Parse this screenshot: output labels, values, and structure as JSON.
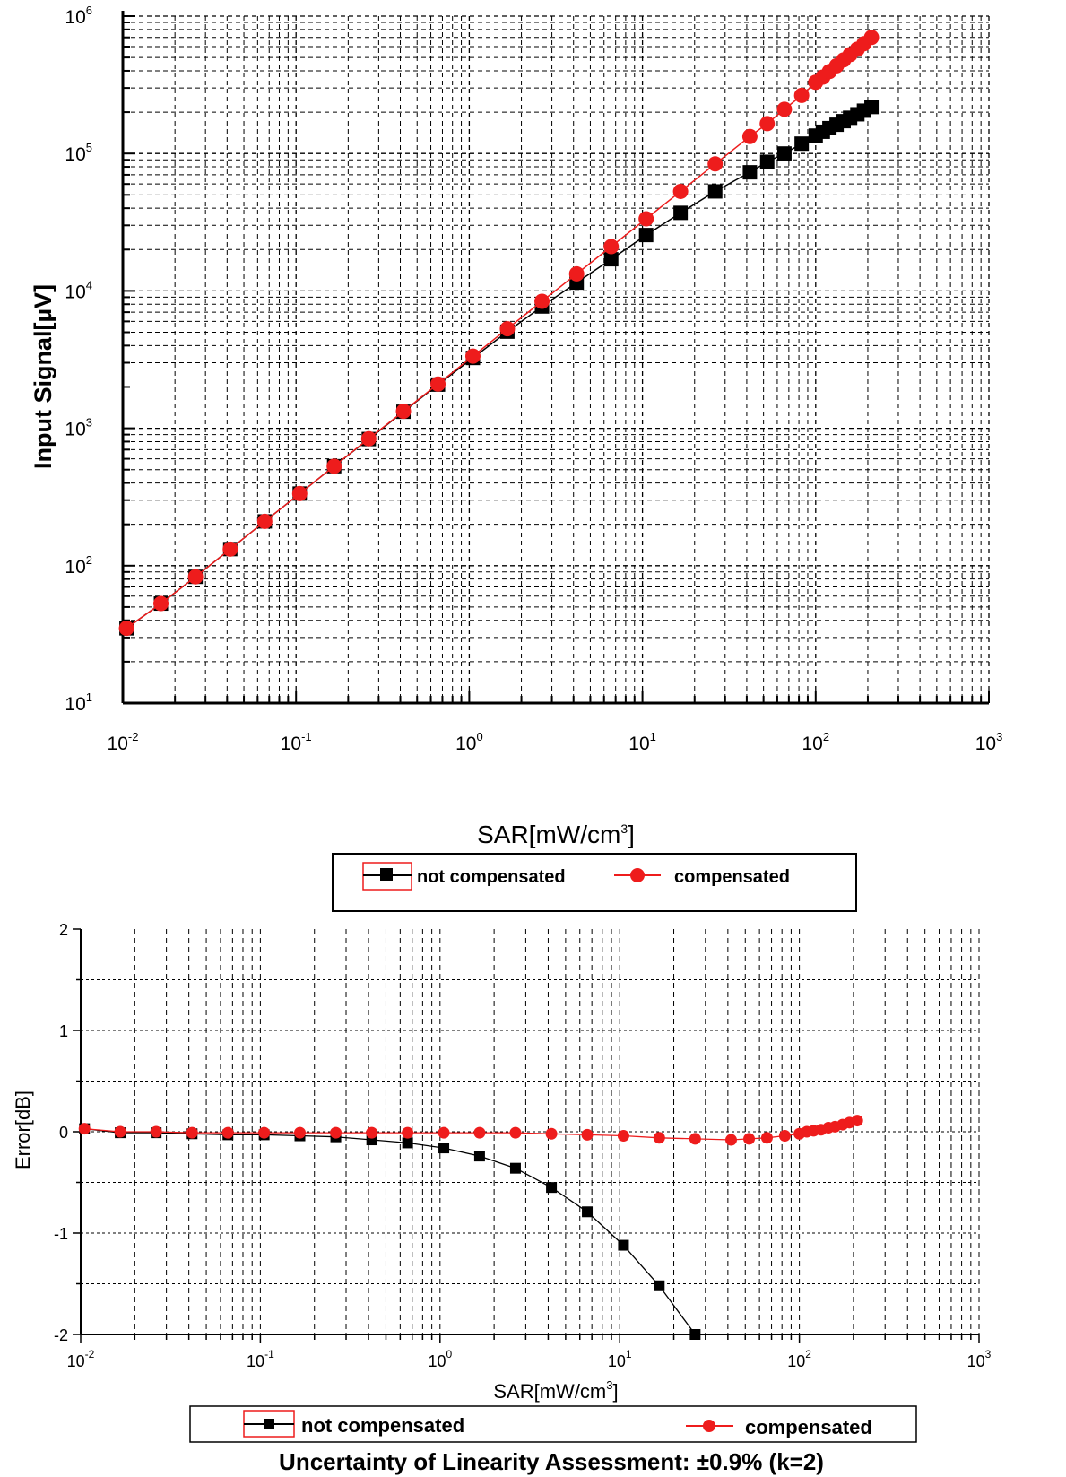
{
  "colors": {
    "not_compensated": "#000000",
    "compensated": "#ee1c1c",
    "grid": "#000000"
  },
  "chart_data": [
    {
      "type": "scatter",
      "xscale": "log",
      "yscale": "log",
      "xlim": [
        0.01,
        1000
      ],
      "ylim": [
        10,
        1000000
      ],
      "xlabel": "SAR[mW/cm3]",
      "ylabel": "Input Signal[µV]",
      "x_ticks": [
        "10-2",
        "10-1",
        "100",
        "101",
        "102",
        "103"
      ],
      "y_ticks": [
        "101",
        "102",
        "103",
        "104",
        "105",
        "106"
      ],
      "grid": true,
      "legend": "below",
      "series": [
        {
          "name": "not compensated",
          "marker": "square",
          "color": "#000000",
          "x": [
            0.0105,
            0.0166,
            0.0263,
            0.0417,
            0.066,
            0.105,
            0.166,
            0.263,
            0.417,
            0.66,
            1.05,
            1.66,
            2.63,
            4.17,
            6.6,
            10.5,
            16.6,
            26.3,
            41.7,
            52.5,
            66,
            83,
            100,
            110,
            120,
            132,
            145,
            158,
            174,
            190,
            210
          ],
          "y": [
            35,
            53,
            83,
            132,
            210,
            335,
            530,
            835,
            1320,
            2080,
            3250,
            5050,
            7700,
            11500,
            17000,
            25500,
            37000,
            53000,
            73000,
            87000,
            100000,
            118000,
            135000,
            144000,
            153000,
            162000,
            172000,
            182000,
            193000,
            205000,
            218000
          ]
        },
        {
          "name": "compensated",
          "marker": "circle",
          "color": "#ee1c1c",
          "x": [
            0.0105,
            0.0166,
            0.0263,
            0.0417,
            0.066,
            0.105,
            0.166,
            0.263,
            0.417,
            0.66,
            1.05,
            1.66,
            2.63,
            4.17,
            6.6,
            10.5,
            16.6,
            26.3,
            41.7,
            52.5,
            66,
            83,
            100,
            110,
            120,
            132,
            145,
            158,
            174,
            190,
            210
          ],
          "y": [
            35,
            53,
            83,
            132,
            210,
            335,
            530,
            840,
            1330,
            2100,
            3350,
            5300,
            8400,
            13300,
            21000,
            33500,
            53000,
            84000,
            133000,
            165000,
            210000,
            265000,
            330000,
            360000,
            395000,
            435000,
            480000,
            525000,
            575000,
            630000,
            700000
          ]
        }
      ]
    },
    {
      "type": "line",
      "xscale": "log",
      "xlim": [
        0.01,
        1000
      ],
      "ylim": [
        -2,
        2
      ],
      "xlabel": "SAR[mW/cm3]",
      "ylabel": "Error[dB]",
      "x_ticks": [
        "10-2",
        "10-1",
        "100",
        "101",
        "102",
        "103"
      ],
      "y_ticks": [
        "2",
        "1",
        "0",
        "-1",
        "-2"
      ],
      "grid": true,
      "legend": "below",
      "series": [
        {
          "name": "not compensated",
          "marker": "square",
          "color": "#000000",
          "x": [
            0.0105,
            0.0166,
            0.0263,
            0.0417,
            0.066,
            0.105,
            0.166,
            0.263,
            0.417,
            0.66,
            1.05,
            1.66,
            2.63,
            4.17,
            6.6,
            10.5,
            16.6,
            26.3
          ],
          "y": [
            0.03,
            -0.01,
            -0.01,
            -0.02,
            -0.03,
            -0.03,
            -0.04,
            -0.05,
            -0.08,
            -0.11,
            -0.16,
            -0.24,
            -0.36,
            -0.55,
            -0.79,
            -1.12,
            -1.52,
            -2.0
          ]
        },
        {
          "name": "compensated",
          "marker": "circle",
          "color": "#ee1c1c",
          "x": [
            0.0105,
            0.0166,
            0.0263,
            0.0417,
            0.066,
            0.105,
            0.166,
            0.263,
            0.417,
            0.66,
            1.05,
            1.66,
            2.63,
            4.17,
            6.6,
            10.5,
            16.6,
            26.3,
            41.7,
            52.5,
            66,
            83,
            100,
            110,
            120,
            132,
            145,
            158,
            174,
            190,
            210
          ],
          "y": [
            0.03,
            0.0,
            0.0,
            -0.01,
            -0.01,
            -0.01,
            -0.01,
            -0.01,
            -0.01,
            -0.01,
            -0.01,
            -0.01,
            -0.01,
            -0.02,
            -0.03,
            -0.04,
            -0.06,
            -0.07,
            -0.08,
            -0.07,
            -0.06,
            -0.04,
            -0.02,
            0.0,
            0.01,
            0.02,
            0.04,
            0.05,
            0.07,
            0.09,
            0.11
          ]
        }
      ]
    }
  ],
  "legend_top": {
    "not_compensated": "not compensated",
    "compensated": "compensated"
  },
  "legend_bottom": {
    "not_compensated": "not compensated",
    "compensated": "compensated"
  },
  "footer": "Uncertainty of Linearity Assessment: ±0.9% (k=2)"
}
